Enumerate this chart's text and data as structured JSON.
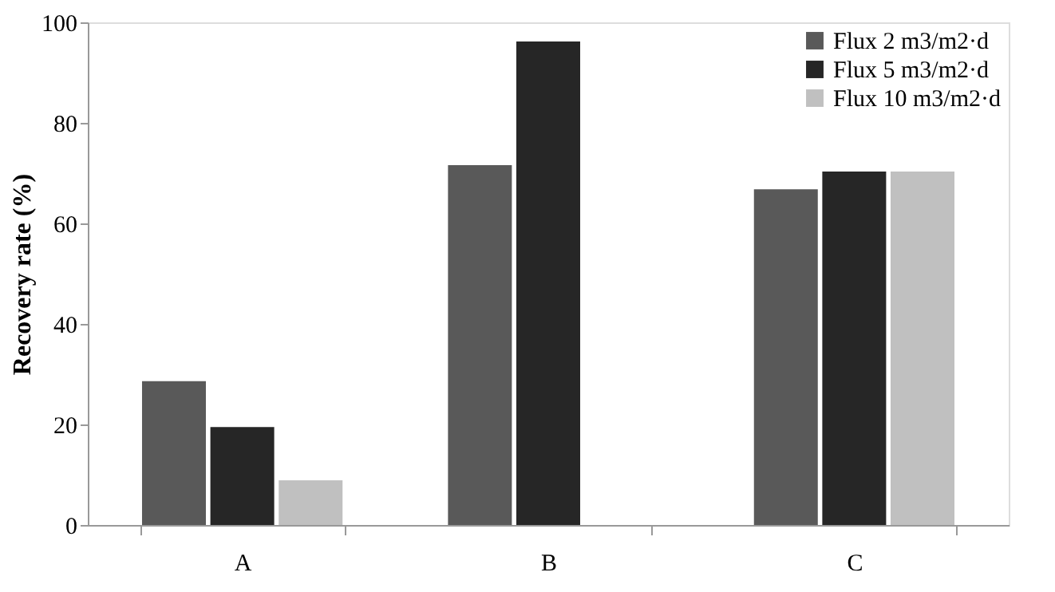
{
  "chart_data": {
    "type": "bar",
    "ylabel": "Recovery rate (%)",
    "categories": [
      "A",
      "B",
      "C"
    ],
    "series": [
      {
        "name": "Flux 2 m3/m2·d",
        "color": "#595959",
        "values": [
          28.6,
          71.6,
          66.8
        ]
      },
      {
        "name": "Flux 5 m3/m2·d",
        "color": "#262626",
        "values": [
          19.5,
          96.2,
          70.3
        ]
      },
      {
        "name": "Flux 10 m3/m2·d",
        "color": "#c0c0c0",
        "values": [
          8.9,
          null,
          70.3
        ]
      }
    ],
    "ylim": [
      0,
      100
    ],
    "yticks": [
      0,
      20,
      40,
      60,
      80,
      100
    ],
    "grid": false,
    "legend": "top right"
  }
}
